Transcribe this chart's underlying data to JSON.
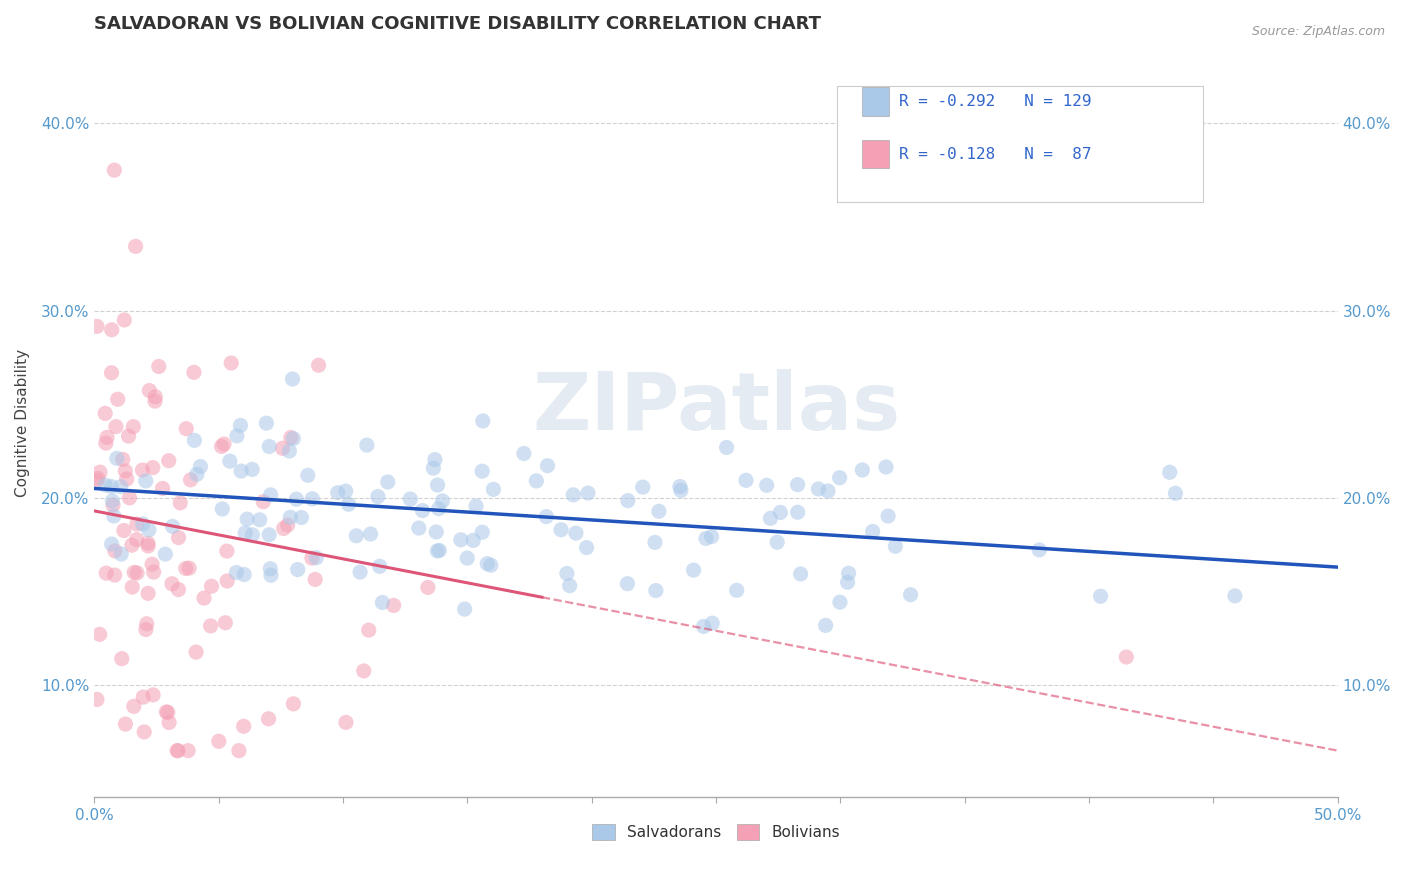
{
  "title": "SALVADORAN VS BOLIVIAN COGNITIVE DISABILITY CORRELATION CHART",
  "source": "Source: ZipAtlas.com",
  "ylabel": "Cognitive Disability",
  "xlim": [
    0.0,
    0.5
  ],
  "ylim": [
    0.04,
    0.44
  ],
  "xticks": [
    0.0,
    0.05,
    0.1,
    0.15,
    0.2,
    0.25,
    0.3,
    0.35,
    0.4,
    0.45,
    0.5
  ],
  "yticks": [
    0.1,
    0.2,
    0.3,
    0.4
  ],
  "ytick_labels": [
    "10.0%",
    "20.0%",
    "30.0%",
    "40.0%"
  ],
  "salvadoran_color": "#aac8e8",
  "bolivian_color": "#f4a0b5",
  "salvadoran_line_color": "#2255bb",
  "bolivian_line_color": "#dd5577",
  "legend_r1": "R = -0.292",
  "legend_n1": "N = 129",
  "legend_r2": "R = -0.128",
  "legend_n2": "N =  87",
  "watermark": "ZIPatlas",
  "title_fontsize": 13,
  "axis_fontsize": 11,
  "tick_fontsize": 11,
  "tick_color": "#5599cc",
  "background_color": "#ffffff",
  "grid_color": "#cccccc",
  "salvadoran_R": -0.292,
  "salvadoran_N": 129,
  "bolivian_R": -0.128,
  "bolivian_N": 87,
  "scatter_alpha": 0.55,
  "scatter_size": 120,
  "legend_color": "#3366cc"
}
